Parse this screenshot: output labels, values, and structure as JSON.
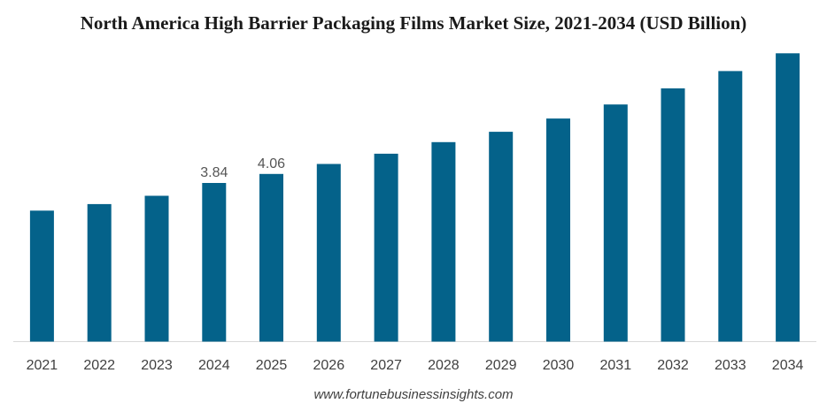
{
  "chart_data": {
    "type": "bar",
    "title": "North America High Barrier Packaging Films Market Size, 2021-2034 (USD Billion)",
    "xlabel": "",
    "ylabel": "",
    "categories": [
      "2021",
      "2022",
      "2023",
      "2024",
      "2025",
      "2026",
      "2027",
      "2028",
      "2029",
      "2030",
      "2031",
      "2032",
      "2033",
      "2034"
    ],
    "values": [
      3.17,
      3.33,
      3.53,
      3.84,
      4.06,
      4.3,
      4.55,
      4.83,
      5.08,
      5.4,
      5.74,
      6.13,
      6.55,
      6.98
    ],
    "data_labels": {
      "2024": "3.84",
      "2025": "4.06"
    },
    "ylim": [
      0,
      7.2
    ],
    "grid": false,
    "bar_color": "#04628a",
    "axis_color": "#d9d9d9"
  },
  "source": "www.fortunebusinessinsights.com"
}
